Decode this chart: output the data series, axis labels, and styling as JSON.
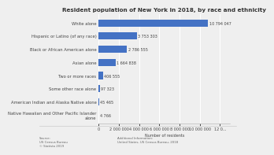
{
  "title": "Resident population of New York in 2018, by race and ethnicity",
  "categories": [
    "Native Hawaiian and Other Pacific Islander\nalone",
    "American Indian and Alaska Native alone",
    "Some other race alone",
    "Two or more races",
    "Asian alone",
    "Black or African American alone",
    "Hispanic or Latino (of any race)",
    "White alone"
  ],
  "values": [
    4766,
    45465,
    97323,
    406555,
    1664838,
    2786555,
    3753303,
    10794047
  ],
  "value_labels": [
    "4 766",
    "45 465",
    "97 323",
    "406 555",
    "1 664 838",
    "2 786 555",
    "3 753 303",
    "10 794 047"
  ],
  "bar_color": "#4472c4",
  "background_color": "#efefef",
  "plot_bg_color": "#efefef",
  "grid_color": "#ffffff",
  "xlabel": "Number of residents",
  "xlim": [
    0,
    13000000
  ],
  "xticks": [
    0,
    2000000,
    4000000,
    6000000,
    8000000,
    10000000,
    12000000
  ],
  "xtick_labels": [
    "0",
    "2 000 000",
    "4 000 000",
    "6 000 000",
    "8 000 000",
    "10 000 000",
    "12 0..."
  ],
  "source_text": "Source:\nUS Census Bureau\n© Statista 2019",
  "additional_text": "Additional Information:\nUnited States, US Census Bureau, 2018",
  "title_fontsize": 5.2,
  "label_fontsize": 3.8,
  "tick_fontsize": 3.5,
  "value_fontsize": 3.5,
  "footer_fontsize": 2.8
}
